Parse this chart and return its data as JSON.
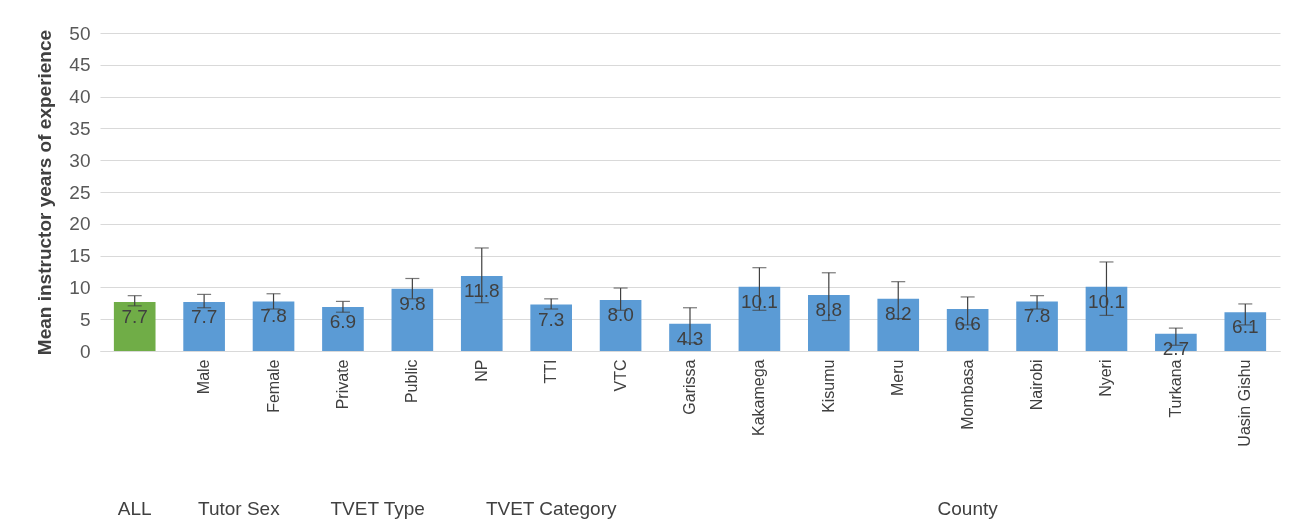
{
  "chart_data": {
    "type": "bar",
    "ylabel": "Mean instructor years of experience",
    "categories": [
      null,
      "Male",
      "Female",
      "Private",
      "Public",
      "NP",
      "TTI",
      "VTC",
      "Garissa",
      "Kakamega",
      "Kisumu",
      "Meru",
      "Mombasa",
      "Nairobi",
      "Nyeri",
      "Turkana",
      "Uasin Gishu"
    ],
    "values": [
      7.7,
      7.7,
      7.8,
      6.9,
      9.8,
      11.8,
      7.3,
      8.0,
      4.3,
      10.1,
      8.8,
      8.2,
      6.6,
      7.8,
      10.1,
      2.7,
      6.1
    ],
    "colors": [
      "#70ad47",
      "#5b9bd5",
      "#5b9bd5",
      "#5b9bd5",
      "#5b9bd5",
      "#5b9bd5",
      "#5b9bd5",
      "#5b9bd5",
      "#5b9bd5",
      "#5b9bd5",
      "#5b9bd5",
      "#5b9bd5",
      "#5b9bd5",
      "#5b9bd5",
      "#5b9bd5",
      "#5b9bd5",
      "#5b9bd5"
    ],
    "errors": [
      [
        7.1,
        8.7
      ],
      [
        6.8,
        8.9
      ],
      [
        6.6,
        9.0
      ],
      [
        6.1,
        7.8
      ],
      [
        8.2,
        11.4
      ],
      [
        7.6,
        16.2
      ],
      [
        6.6,
        8.2
      ],
      [
        6.4,
        9.9
      ],
      [
        1.3,
        6.8
      ],
      [
        6.4,
        13.1
      ],
      [
        4.8,
        12.3
      ],
      [
        5.1,
        10.9
      ],
      [
        4.1,
        8.5
      ],
      [
        6.6,
        8.7
      ],
      [
        5.6,
        14.0
      ],
      [
        0.9,
        3.6
      ],
      [
        4.1,
        7.4
      ]
    ],
    "value_labels": [
      "7.7",
      "7.7",
      "7.8",
      "6.9",
      "9.8",
      "11.8",
      "7.3",
      "8.0",
      "4.3",
      "10.1",
      "8.8",
      "8.2",
      "6.6",
      "7.8",
      "10.1",
      "2.7",
      "6.1"
    ],
    "annotations": [
      "ALL",
      "Tutor Sex",
      "TVET Type",
      "TVET Category",
      "County"
    ],
    "ylim": [
      0,
      50
    ],
    "yticks": [
      0,
      5,
      10,
      15,
      20,
      25,
      30,
      35,
      40,
      45,
      50
    ],
    "grid": "y"
  }
}
